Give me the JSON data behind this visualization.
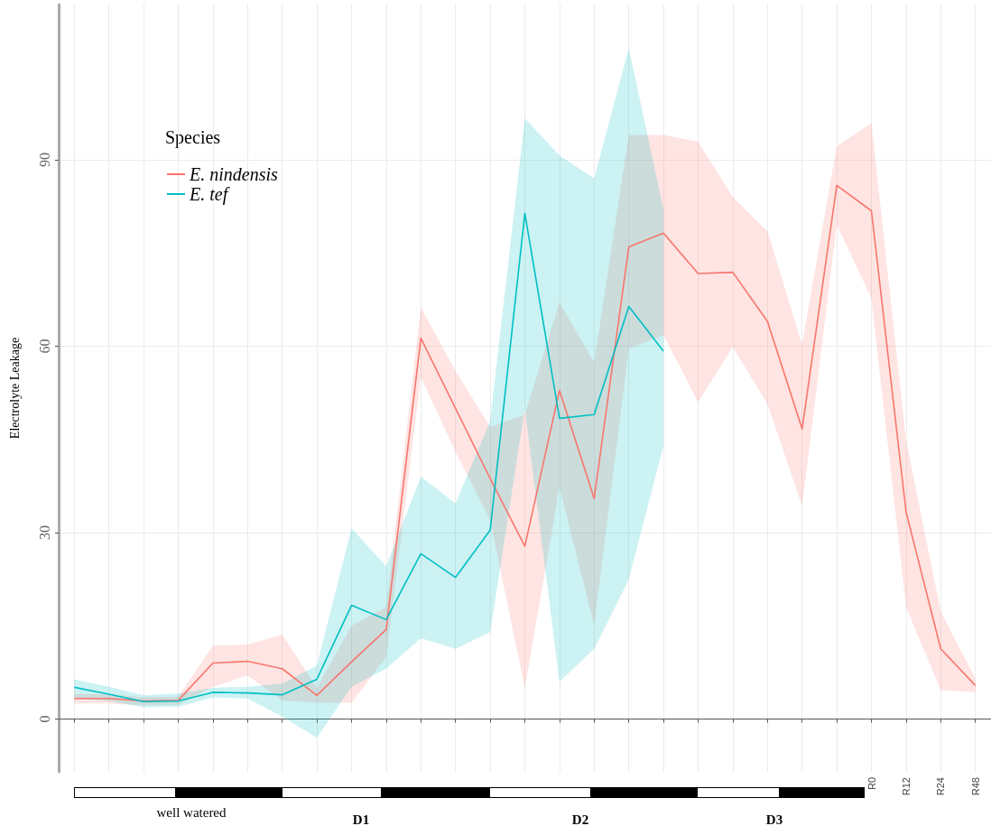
{
  "chart_data": {
    "type": "line",
    "ylabel": "Electrolyte Leakage",
    "legend_title": "Species",
    "legend": "top left",
    "grid": true,
    "marker": "none",
    "line_style": "solid",
    "categories": [
      null,
      null,
      null,
      null,
      null,
      null,
      null,
      null,
      null,
      null,
      null,
      null,
      null,
      null,
      null,
      null,
      null,
      null,
      null,
      null,
      null,
      null,
      null,
      "R0",
      "R12",
      "R24",
      "R48"
    ],
    "ylim": [
      -8.5,
      115
    ],
    "yticks": [
      0,
      30,
      60,
      90
    ],
    "series": [
      {
        "name": "E. nindensis",
        "color": "#f8766d",
        "values": [
          3.3,
          3.3,
          2.9,
          3.0,
          9.0,
          9.3,
          8.1,
          3.8,
          9.2,
          14.4,
          61.3,
          50,
          38.7,
          27.8,
          52.9,
          35.5,
          76,
          78.2,
          71.7,
          71.9,
          64,
          46.7,
          85.9,
          81.8,
          33.3,
          11.3,
          5.4
        ],
        "lower": [
          2.5,
          2.5,
          2.2,
          2.3,
          5.2,
          7,
          3,
          2.6,
          2.6,
          10,
          55,
          43,
          32,
          5,
          37.3,
          15.1,
          59.6,
          61.8,
          51,
          59.9,
          50.7,
          34.3,
          79.6,
          67.7,
          18,
          4.7,
          4.3
        ],
        "upper": [
          4,
          4,
          3.5,
          3.6,
          11.8,
          12,
          13.6,
          5,
          15,
          18,
          66.3,
          56,
          47,
          49,
          67,
          57.4,
          94,
          94,
          92.9,
          84,
          78.5,
          60.3,
          92.2,
          95.9,
          44.8,
          17.3,
          6.5
        ]
      },
      {
        "name": "E. tef",
        "color": "#00bfc4",
        "values": [
          5.1,
          4.0,
          2.8,
          2.9,
          4.3,
          4.2,
          3.9,
          6.4,
          18.3,
          16,
          26.6,
          22.8,
          30.4,
          81.4,
          48.4,
          49,
          66.4,
          59.2,
          null,
          null,
          null,
          null,
          null,
          null,
          null,
          null,
          null
        ],
        "lower": [
          3.3,
          2.9,
          1.9,
          2,
          3.5,
          3.3,
          0.4,
          -3,
          5.2,
          8.1,
          13,
          11.3,
          14,
          50,
          6,
          11.3,
          22.5,
          44,
          null,
          null,
          null,
          null,
          null,
          null,
          null,
          null,
          null
        ],
        "upper": [
          6.4,
          5.2,
          3.8,
          4.1,
          5,
          5.2,
          5.7,
          8.6,
          30.7,
          24.6,
          39,
          34.7,
          48,
          96.7,
          90.7,
          87,
          108,
          82,
          null,
          null,
          null,
          null,
          null,
          null,
          null,
          null,
          null
        ]
      }
    ],
    "annotations": [
      "well watered",
      "D1",
      "D2",
      "D3"
    ]
  }
}
